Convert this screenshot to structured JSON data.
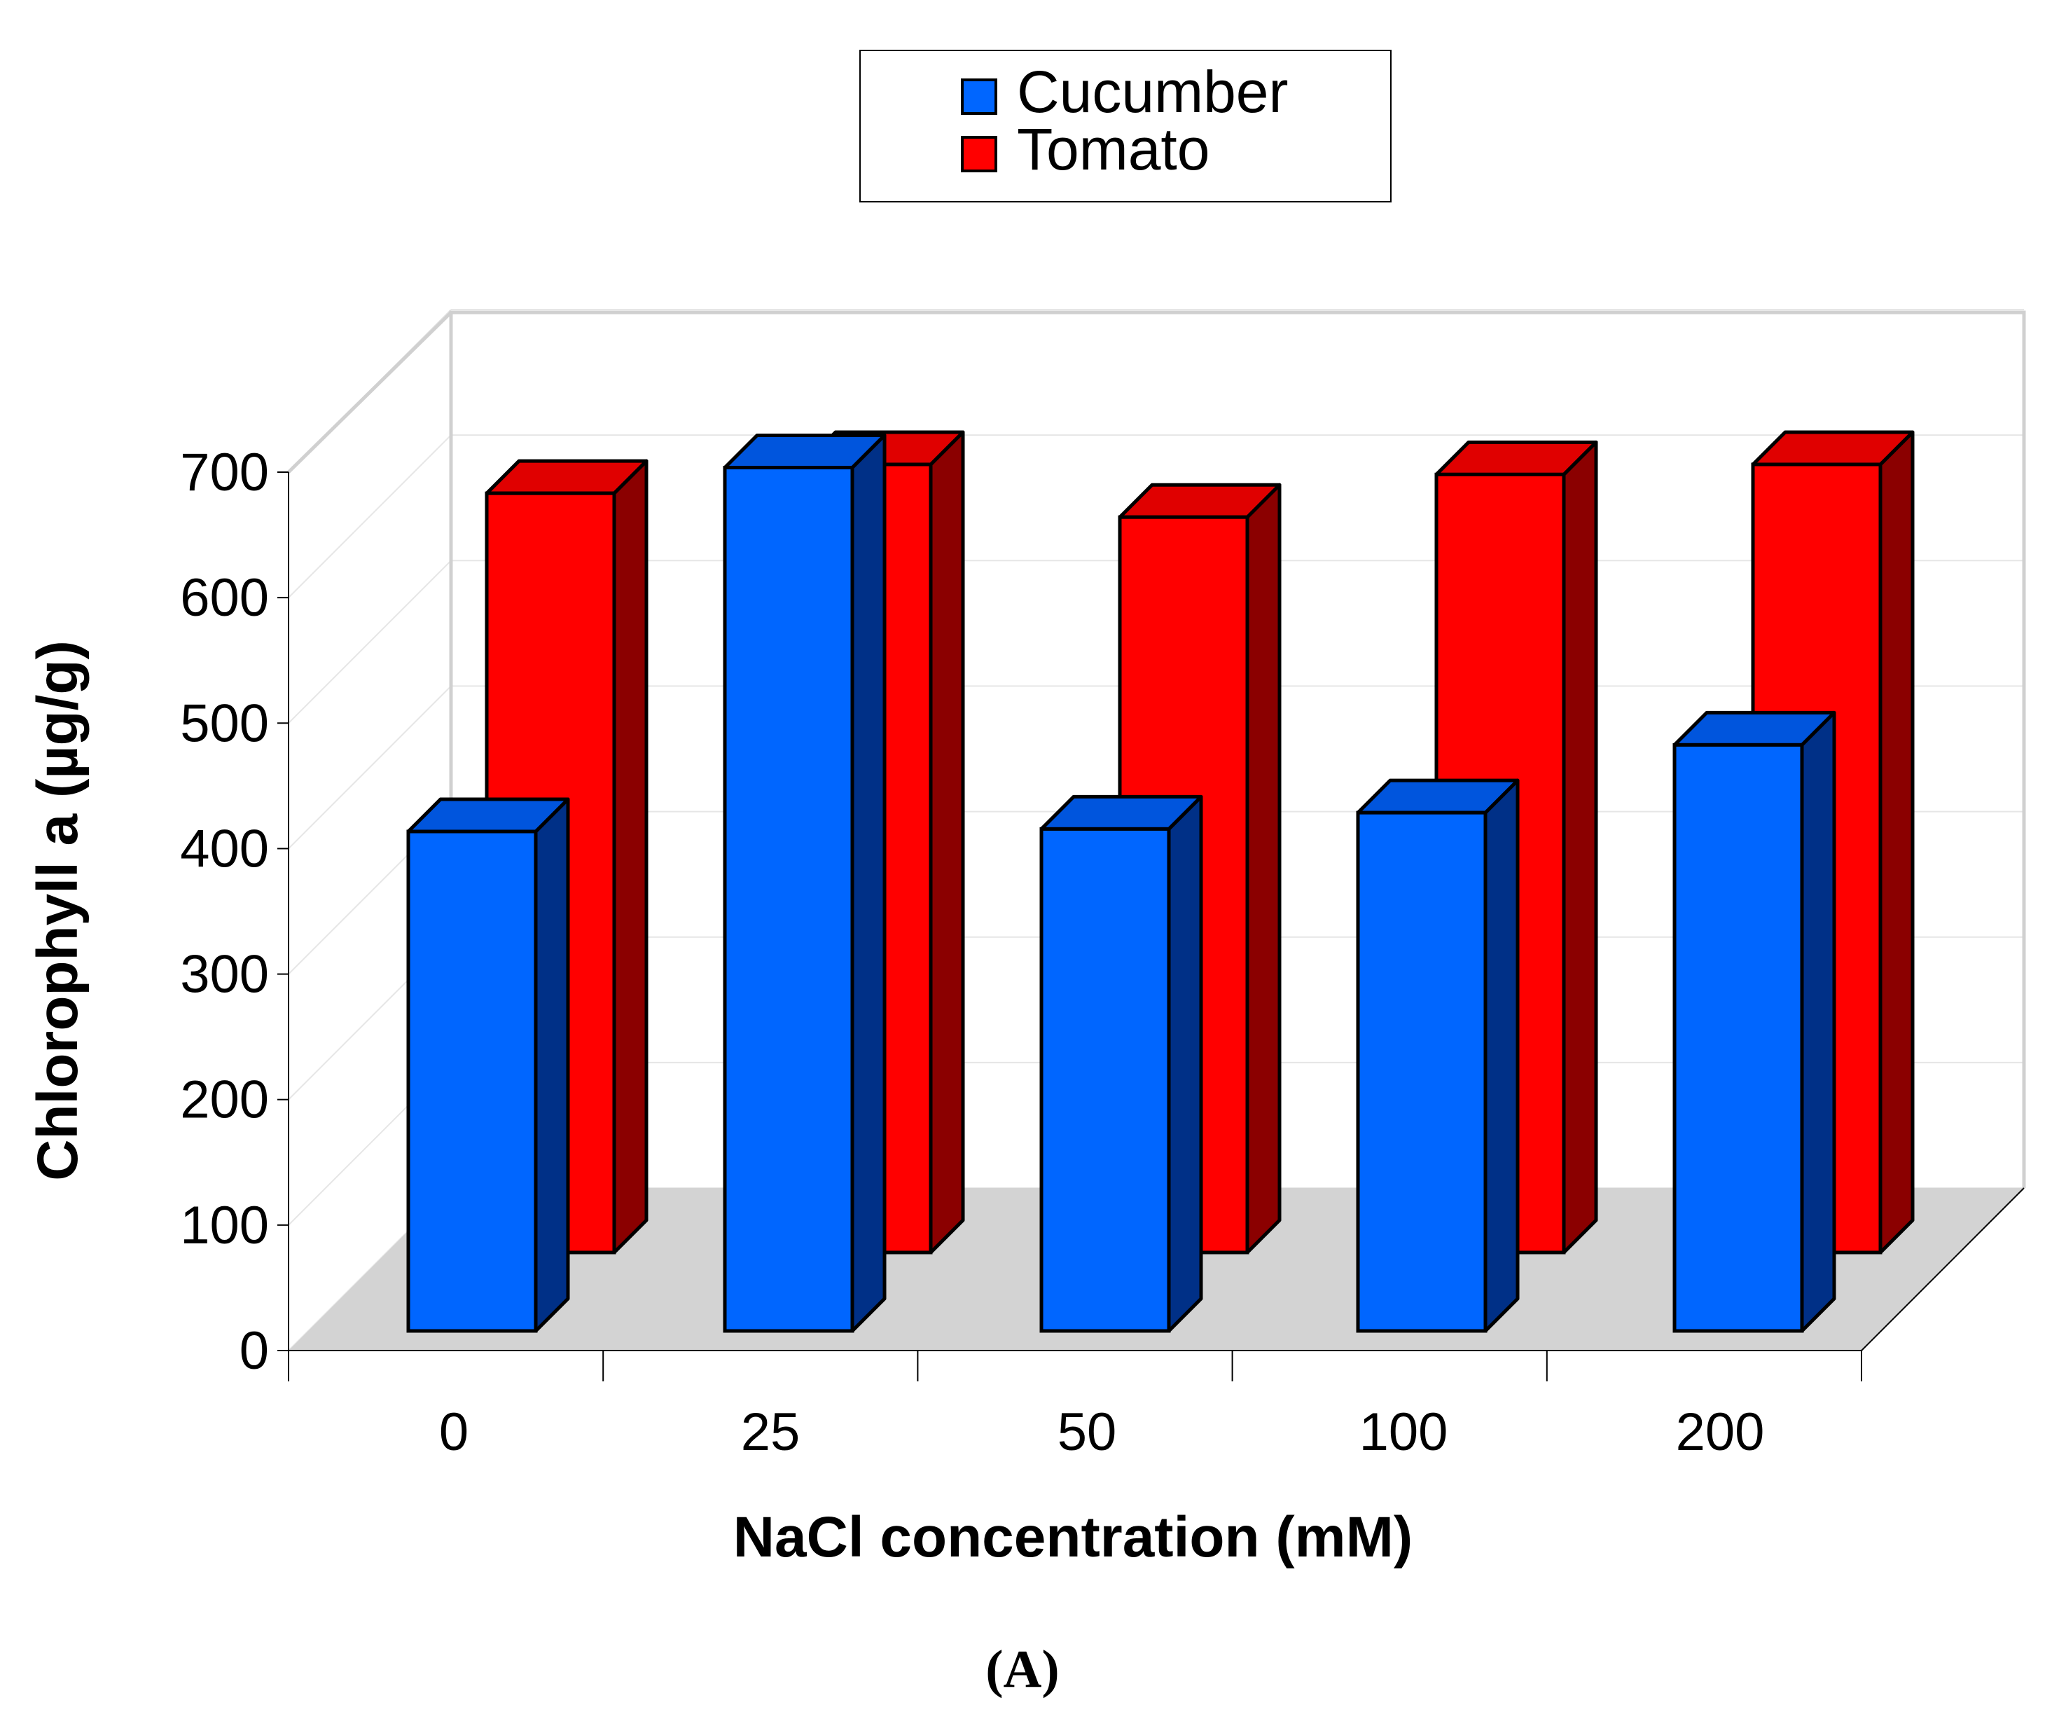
{
  "chart_data": {
    "type": "bar",
    "categories": [
      "0",
      "25",
      "50",
      "100",
      "200"
    ],
    "series": [
      {
        "name": "Cucumber",
        "values": [
          398,
          688,
          400,
          413,
          467
        ]
      },
      {
        "name": "Tomato",
        "values": [
          605,
          628,
          586,
          620,
          628
        ]
      }
    ],
    "xlabel": "NaCl concentration (mM)",
    "ylabel": "Chlorophyll a (µg/g)",
    "ylim": [
      0,
      700
    ],
    "yticks": [
      "0",
      "100",
      "200",
      "300",
      "400",
      "500",
      "600",
      "700"
    ],
    "grid": true,
    "legend_position": "top-center",
    "style": "3d-clustered"
  },
  "panel_label": "(A)",
  "colors": {
    "cucumber_front": "#0066ff",
    "cucumber_top": "#0055dd",
    "cucumber_side": "#003087",
    "tomato_front": "#ff0000",
    "tomato_top": "#e00000",
    "tomato_side": "#8b0000",
    "floor": "#d3d3d3",
    "wall_frame": "#d0d0d0"
  }
}
